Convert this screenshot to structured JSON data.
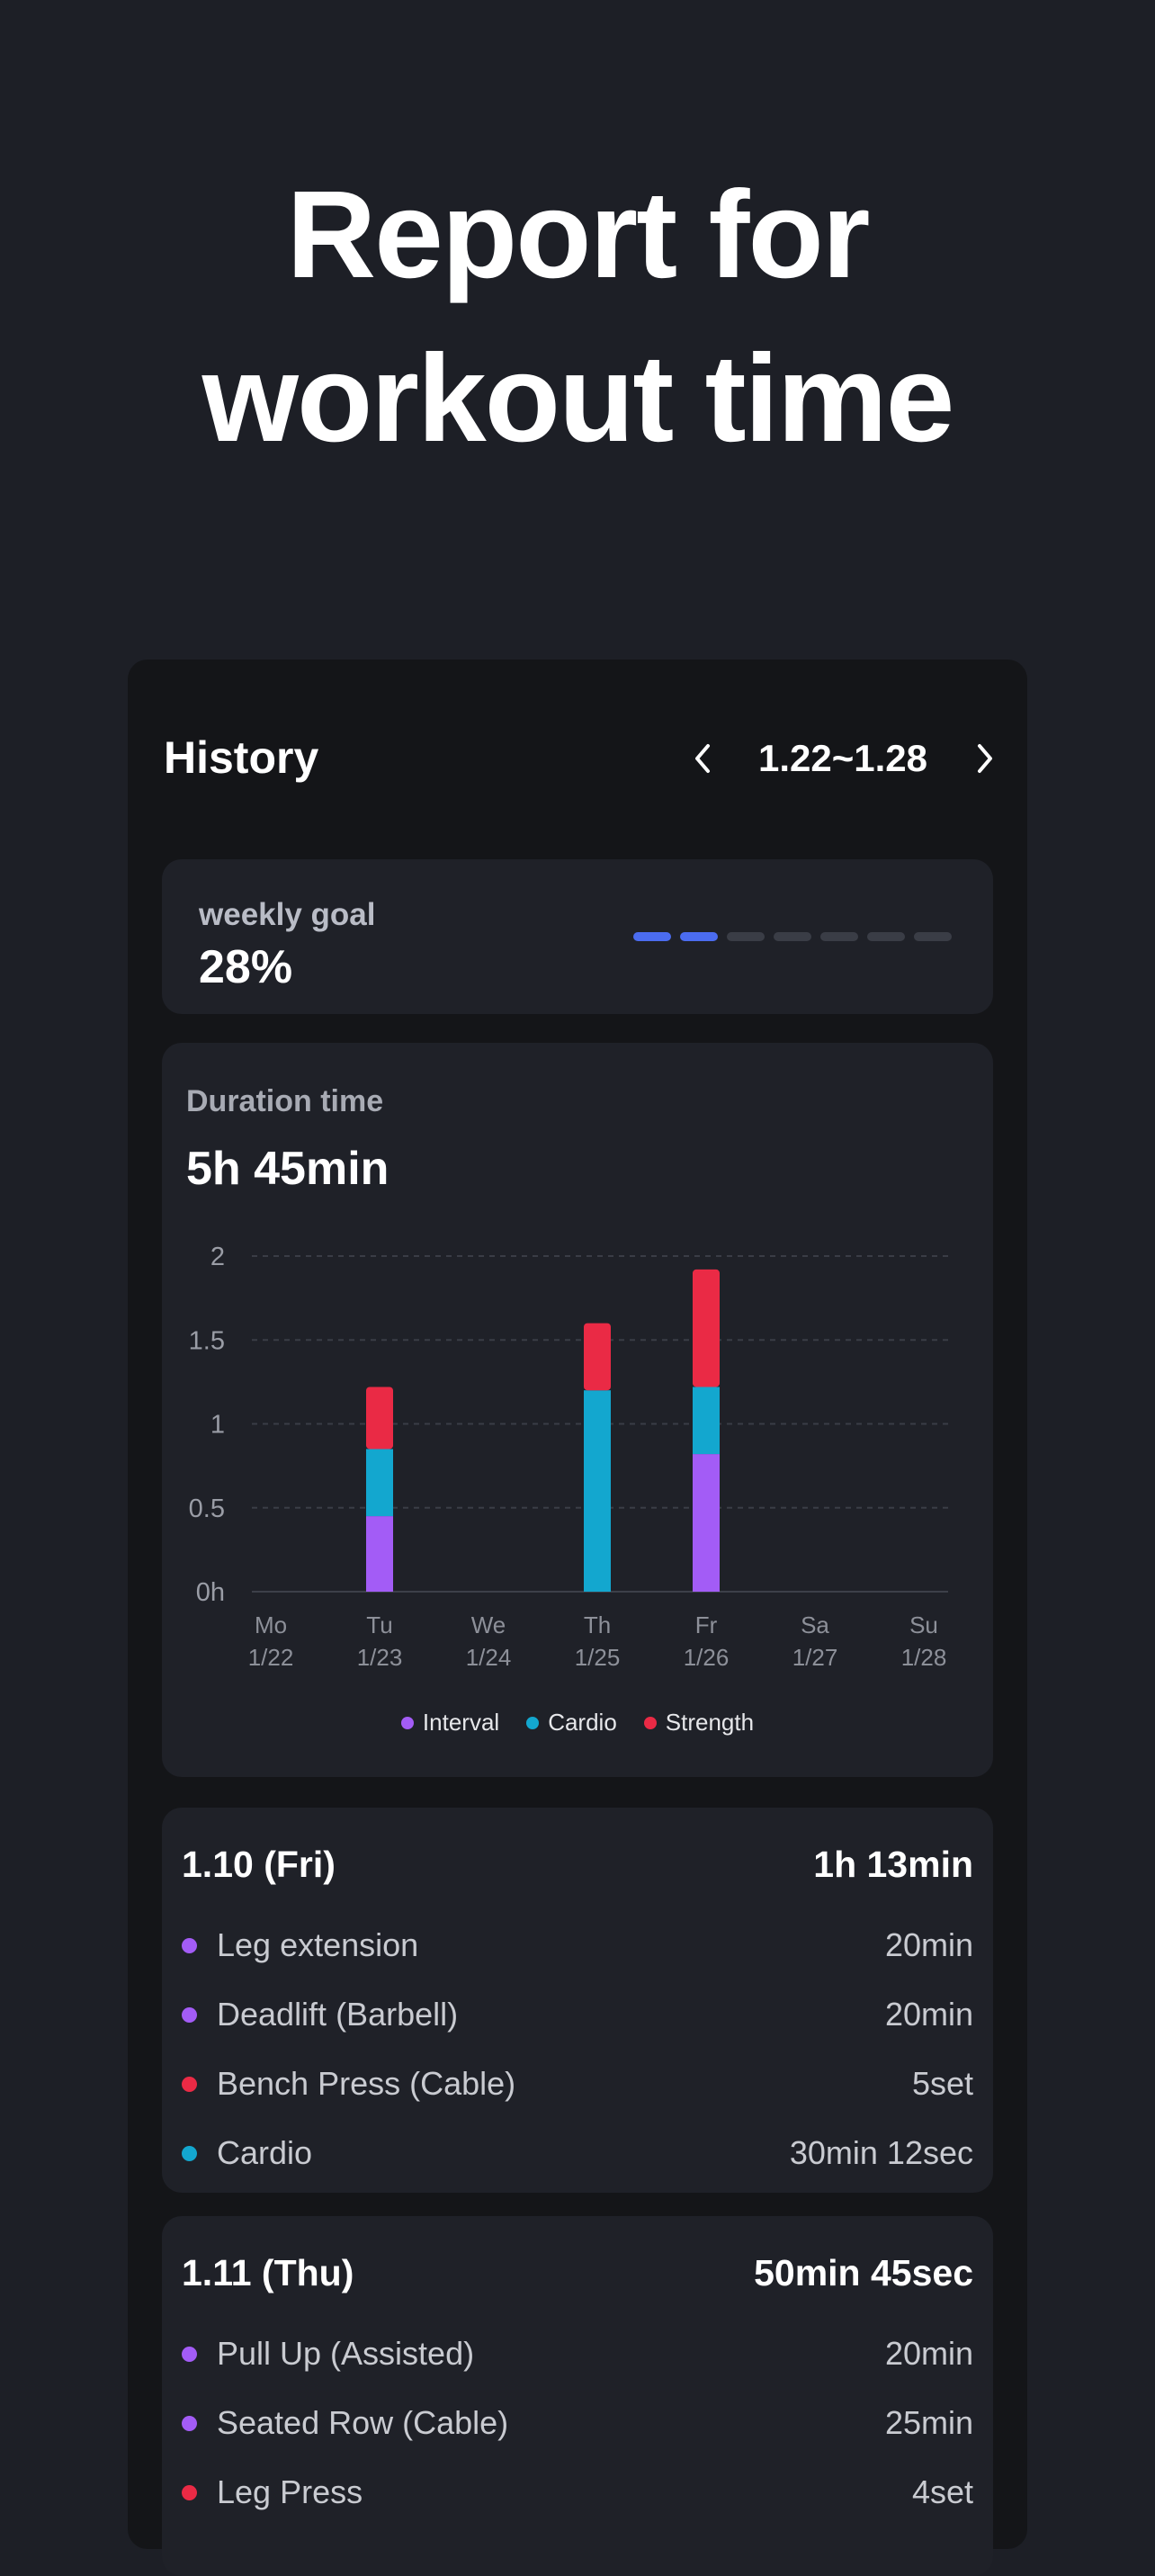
{
  "hero": {
    "line1": "Report for",
    "line2": "workout time"
  },
  "header": {
    "title": "History",
    "range": "1.22~1.28"
  },
  "goal": {
    "label": "weekly goal",
    "value": "28%",
    "progress": 0.28,
    "segments_total": 7,
    "segments_filled": 2
  },
  "duration": {
    "label": "Duration time",
    "value": "5h 45min"
  },
  "colors": {
    "interval": "#a35cf6",
    "cardio": "#13a7cf",
    "strength": "#ea2a45",
    "accent": "#4b6cf0"
  },
  "chart_data": {
    "type": "bar",
    "stacked": true,
    "categories": [
      "Mo 1/22",
      "Tu 1/23",
      "We 1/24",
      "Th 1/25",
      "Fr 1/26",
      "Sa 1/27",
      "Su 1/28"
    ],
    "day_labels": [
      "Mo",
      "Tu",
      "We",
      "Th",
      "Fr",
      "Sa",
      "Su"
    ],
    "date_labels": [
      "1/22",
      "1/23",
      "1/24",
      "1/25",
      "1/26",
      "1/27",
      "1/28"
    ],
    "yticks": [
      "0h",
      "0.5",
      "1",
      "1.5",
      "2"
    ],
    "ylim": [
      0,
      2
    ],
    "grid": true,
    "legend_position": "bottom",
    "series": [
      {
        "name": "Interval",
        "color": "#a35cf6",
        "values": [
          0,
          0.45,
          0,
          0,
          0.82,
          0,
          0
        ]
      },
      {
        "name": "Cardio",
        "color": "#13a7cf",
        "values": [
          0,
          0.4,
          0,
          1.2,
          0.4,
          0,
          0
        ]
      },
      {
        "name": "Strength",
        "color": "#ea2a45",
        "values": [
          0,
          0.37,
          0,
          0.4,
          0.7,
          0,
          0
        ]
      }
    ]
  },
  "days": [
    {
      "date": "1.10 (Fri)",
      "total": "1h 13min",
      "items": [
        {
          "name": "Leg extension",
          "value": "20min",
          "kind": "interval"
        },
        {
          "name": "Deadlift (Barbell)",
          "value": "20min",
          "kind": "interval"
        },
        {
          "name": "Bench Press (Cable)",
          "value": "5set",
          "kind": "strength"
        },
        {
          "name": "Cardio",
          "value": "30min 12sec",
          "kind": "cardio"
        }
      ]
    },
    {
      "date": "1.11 (Thu)",
      "total": "50min 45sec",
      "items": [
        {
          "name": "Pull Up (Assisted)",
          "value": "20min",
          "kind": "interval"
        },
        {
          "name": "Seated Row (Cable)",
          "value": "25min",
          "kind": "interval"
        },
        {
          "name": "Leg Press",
          "value": "4set",
          "kind": "strength"
        }
      ]
    }
  ]
}
